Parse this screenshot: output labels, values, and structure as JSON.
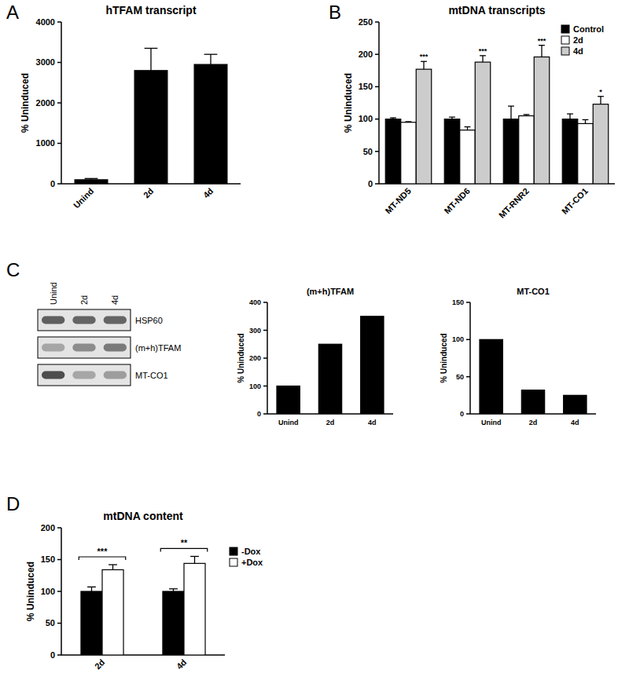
{
  "panel_labels": [
    "A",
    "B",
    "C",
    "D"
  ],
  "blot": {
    "lanes": [
      "Unind",
      "2d",
      "4d"
    ],
    "rows": [
      "HSP60",
      "(m+h)TFAM",
      "MT-CO1"
    ]
  },
  "chart_data": [
    {
      "type": "bar",
      "title": "hTFAM transcript",
      "y_label": "% Uninduced",
      "categories": [
        "Unind",
        "2d",
        "4d"
      ],
      "values": [
        100,
        2800,
        2950
      ],
      "errors": [
        30,
        550,
        250
      ],
      "color": "#000000",
      "ylim": [
        0,
        4000
      ],
      "yticks": [
        0,
        1000,
        2000,
        3000,
        4000
      ]
    },
    {
      "type": "bar",
      "title": "mtDNA transcripts",
      "y_label": "% Uninduced",
      "categories": [
        "MT-ND5",
        "MT-ND6",
        "MT-RNR2",
        "MT-CO1"
      ],
      "series": [
        {
          "name": "Control",
          "color": "#000000",
          "values": [
            100,
            100,
            100,
            100
          ],
          "errors": [
            2,
            3,
            20,
            8
          ]
        },
        {
          "name": "2d",
          "color": "#ffffff",
          "values": [
            95,
            83,
            105,
            93
          ],
          "errors": [
            1,
            5,
            2,
            6
          ]
        },
        {
          "name": "4d",
          "color": "#cccccc",
          "values": [
            177,
            188,
            196,
            123
          ],
          "errors": [
            12,
            10,
            18,
            12
          ],
          "annotations": [
            "***",
            "***",
            "***",
            "*"
          ]
        }
      ],
      "ylim": [
        0,
        250
      ],
      "yticks": [
        0,
        50,
        100,
        150,
        200,
        250
      ],
      "legend": "upper right"
    },
    {
      "type": "bar",
      "title": "(m+h)TFAM",
      "y_label": "% Uninduced",
      "categories": [
        "Unind",
        "2d",
        "4d"
      ],
      "values": [
        100,
        250,
        350
      ],
      "color": "#000000",
      "ylim": [
        0,
        400
      ],
      "yticks": [
        0,
        100,
        200,
        300,
        400
      ]
    },
    {
      "type": "bar",
      "title": "MT-CO1",
      "y_label": "% Uninduced",
      "categories": [
        "Unind",
        "2d",
        "4d"
      ],
      "values": [
        100,
        32,
        25
      ],
      "color": "#000000",
      "ylim": [
        0,
        150
      ],
      "yticks": [
        0,
        50,
        100,
        150
      ]
    },
    {
      "type": "bar",
      "title": "mtDNA content",
      "y_label": "% Uninduced",
      "categories": [
        "2d",
        "4d"
      ],
      "series": [
        {
          "name": "-Dox",
          "color": "#000000",
          "values": [
            100,
            100
          ],
          "errors": [
            7,
            4
          ]
        },
        {
          "name": "+Dox",
          "color": "#ffffff",
          "values": [
            134,
            144
          ],
          "errors": [
            8,
            11
          ]
        }
      ],
      "annotations": [
        "***",
        "**"
      ],
      "ylim": [
        0,
        200
      ],
      "yticks": [
        0,
        50,
        100,
        150,
        200
      ],
      "legend": "right"
    }
  ]
}
